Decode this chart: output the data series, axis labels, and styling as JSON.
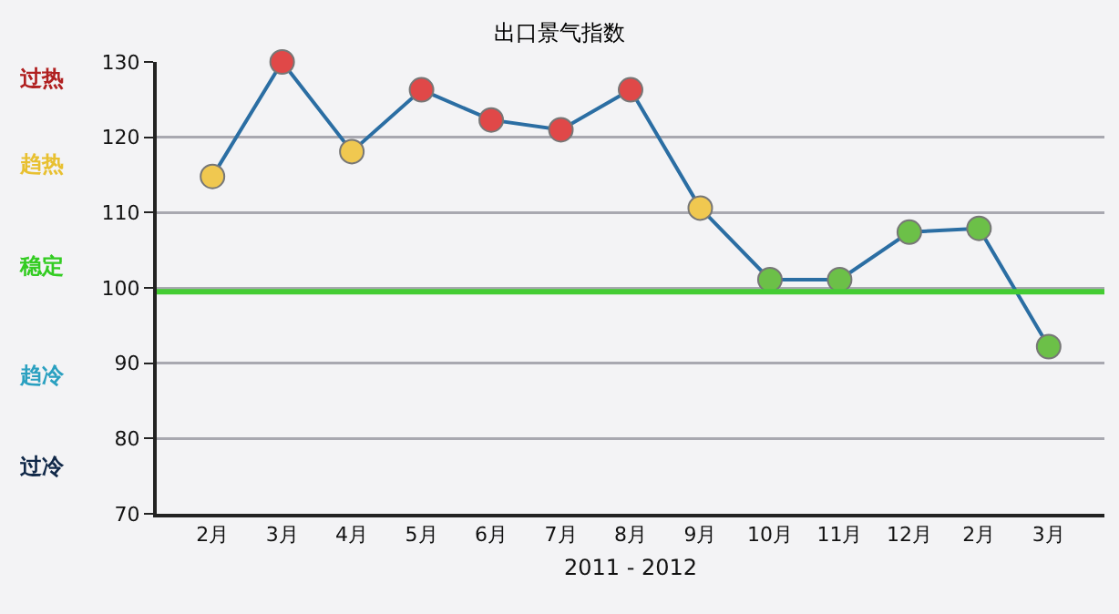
{
  "chart_data": {
    "type": "line",
    "title": "出口景气指数",
    "xlabel": "2011 - 2012",
    "categories": [
      "2月",
      "3月",
      "4月",
      "5月",
      "6月",
      "7月",
      "8月",
      "9月",
      "10月",
      "11月",
      "12月",
      "2月",
      "3月"
    ],
    "series": [
      {
        "color": "#2b6ea3",
        "values": [
          114.8,
          130,
          118.1,
          126.3,
          122.3,
          121.0,
          126.3,
          110.6,
          101.1,
          101.1,
          107.4,
          107.9,
          92.2
        ],
        "colors": [
          "#f0c850",
          "#e04848",
          "#f0c850",
          "#e04848",
          "#e04848",
          "#e04848",
          "#e04848",
          "#f0c850",
          "#6cc048",
          "#6cc048",
          "#6cc048",
          "#6cc048",
          "#6cc048"
        ]
      }
    ],
    "ylim": [
      70,
      130
    ],
    "yticks": [
      70,
      80,
      90,
      100,
      110,
      120,
      130
    ],
    "grid": "y",
    "marker": "circle",
    "line_style": "solid",
    "ref_lines": [
      {
        "axis": "y",
        "value": 99.5,
        "color": "#44cc33"
      }
    ],
    "annotations": [
      "过热",
      "趋热",
      "稳定",
      "趋冷",
      "过冷"
    ]
  }
}
